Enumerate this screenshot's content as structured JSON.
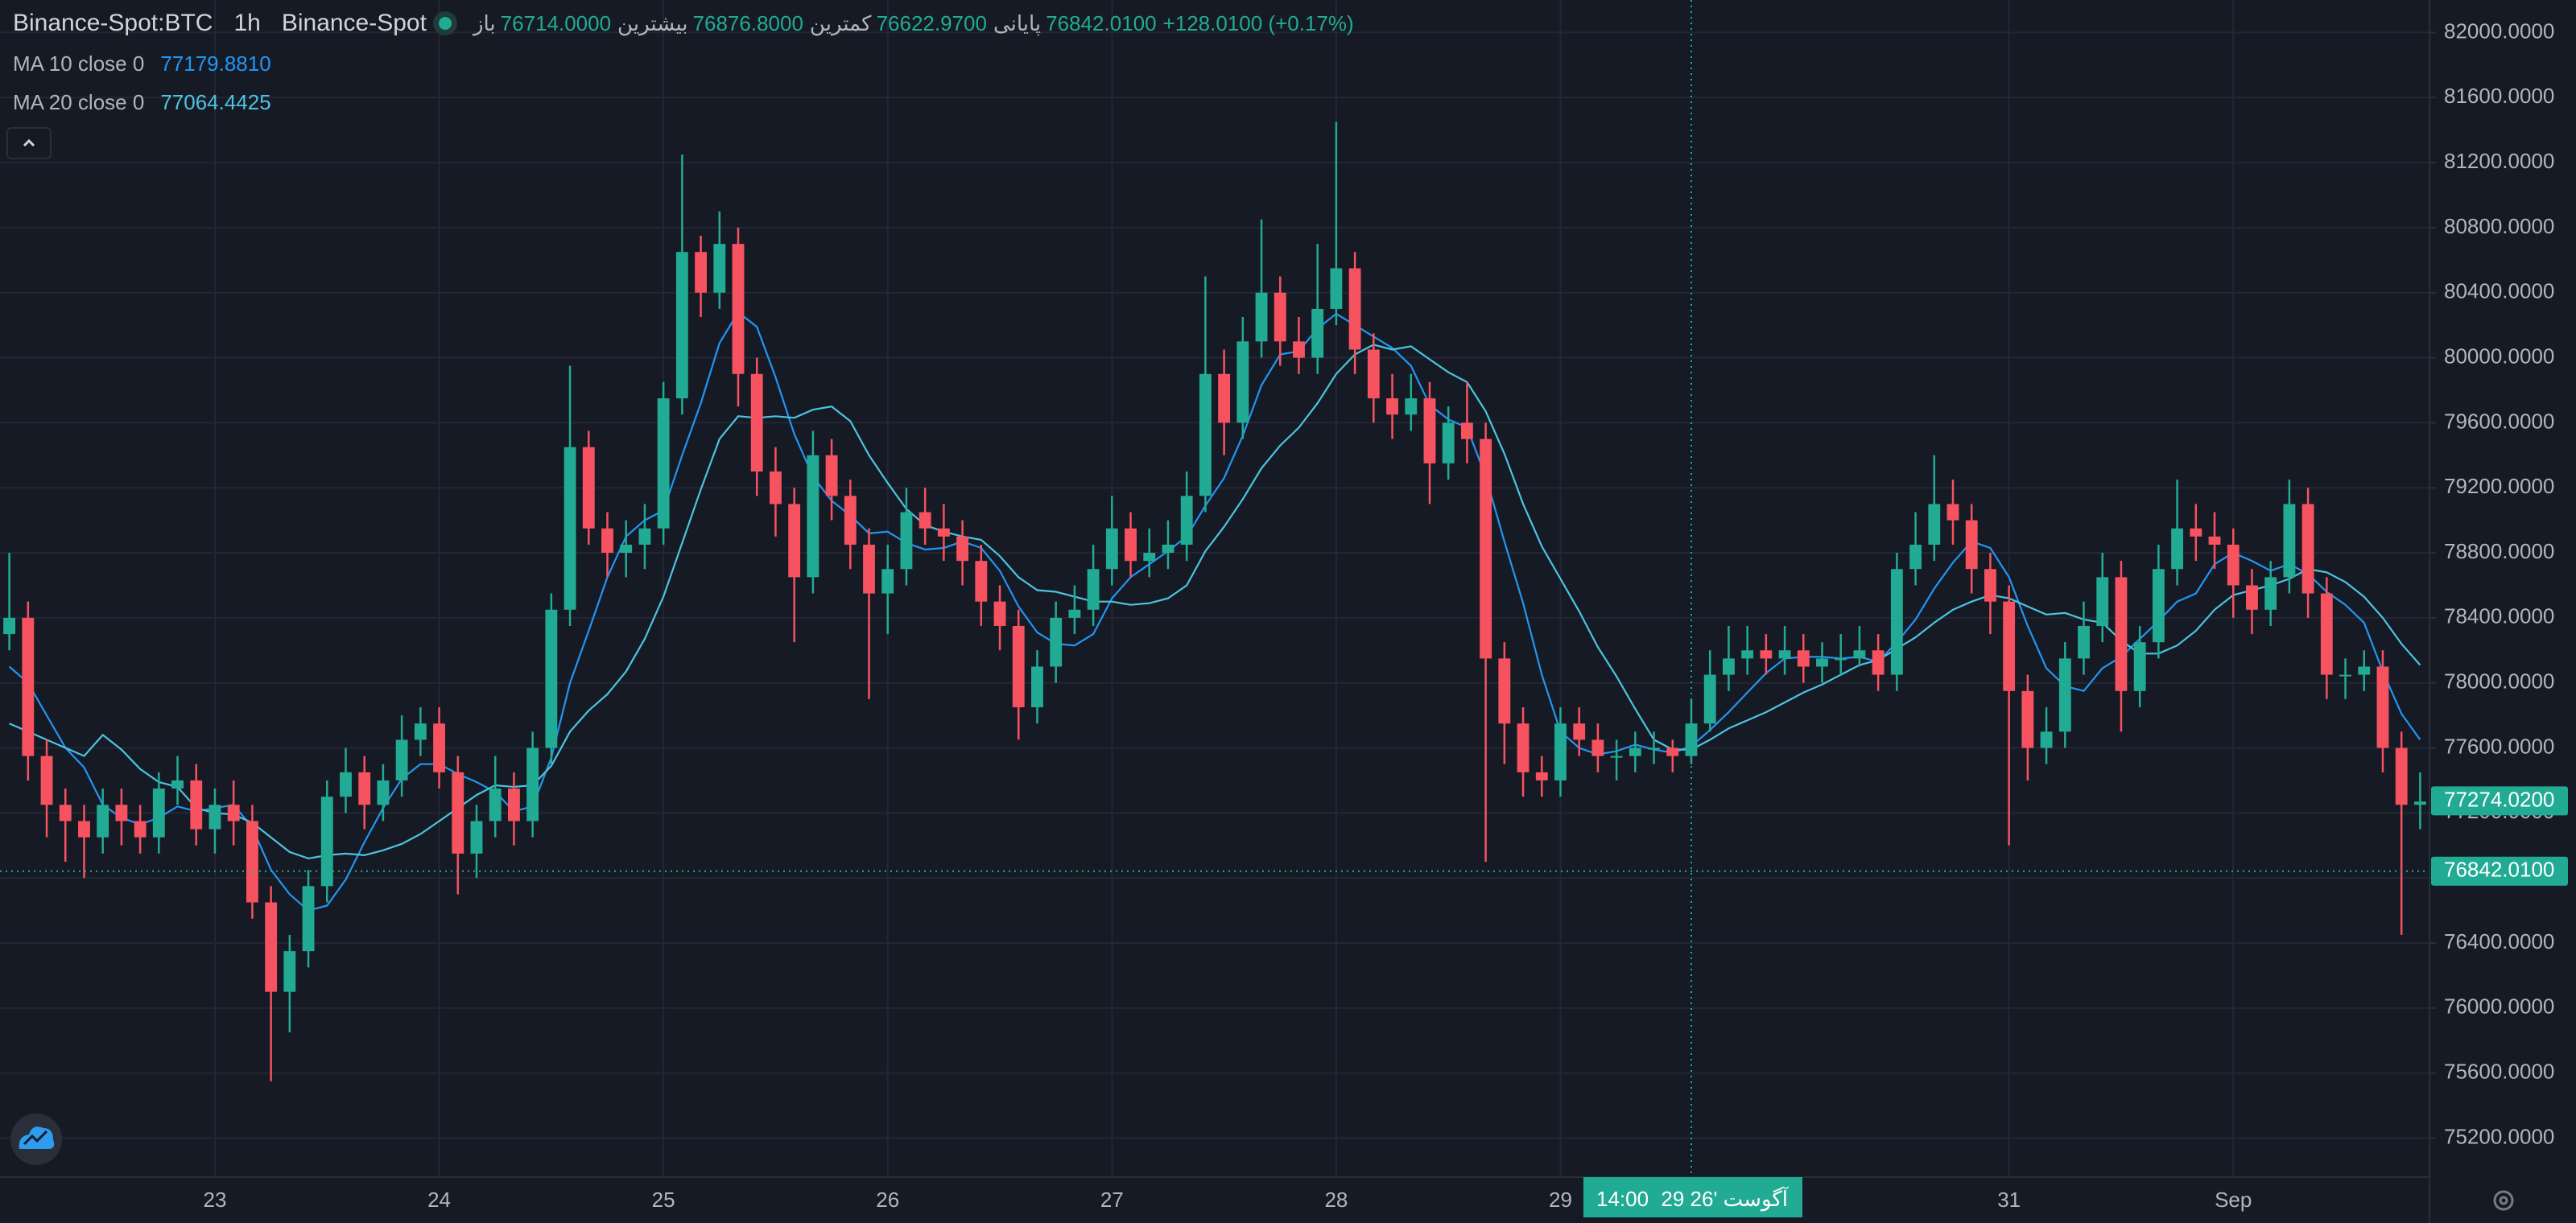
{
  "header": {
    "symbol": "Binance-Spot:BTC",
    "interval": "1h",
    "exchange": "Binance-Spot",
    "ohlc": [
      {
        "label": "باز",
        "value": "76714.0000"
      },
      {
        "label": "بیشترین",
        "value": "76876.8000"
      },
      {
        "label": "کمترین",
        "value": "76622.9700"
      },
      {
        "label": "پایانی",
        "value": "76842.0100"
      }
    ],
    "change": "+128.0100 (+0.17%)"
  },
  "chart_data": {
    "type": "candlestick",
    "up_color": "#22ab94",
    "down_color": "#f7525f",
    "grid": true,
    "categories": [
      null,
      null,
      null,
      null,
      null,
      null,
      null,
      null,
      null,
      null,
      null,
      "23",
      null,
      null,
      null,
      null,
      null,
      null,
      null,
      null,
      null,
      null,
      null,
      "24",
      null,
      null,
      null,
      null,
      null,
      null,
      null,
      null,
      null,
      null,
      null,
      "25",
      null,
      null,
      null,
      null,
      null,
      null,
      null,
      null,
      null,
      null,
      null,
      "26",
      null,
      null,
      null,
      null,
      null,
      null,
      null,
      null,
      null,
      null,
      null,
      "27",
      null,
      null,
      null,
      null,
      null,
      null,
      null,
      null,
      null,
      null,
      null,
      "28",
      null,
      null,
      null,
      null,
      null,
      null,
      null,
      null,
      null,
      null,
      null,
      "29",
      null,
      null,
      null,
      null,
      null,
      null,
      null,
      null,
      null,
      null,
      null,
      null,
      null,
      null,
      null,
      null,
      null,
      null,
      null,
      null,
      null,
      null,
      null,
      "31",
      null,
      null,
      null,
      null,
      null,
      null,
      null,
      null,
      null,
      null,
      null,
      "Sep",
      null,
      null,
      null,
      null,
      null,
      null,
      null,
      null,
      null,
      null
    ],
    "open": [
      78300,
      78400,
      77550,
      77250,
      77150,
      77050,
      77250,
      77150,
      77050,
      77350,
      77400,
      77100,
      77250,
      77150,
      76650,
      76100,
      76350,
      76750,
      77300,
      77450,
      77250,
      77400,
      77650,
      77750,
      77450,
      76950,
      77150,
      77350,
      77150,
      77600,
      78450,
      79450,
      78950,
      78800,
      78850,
      78950,
      79750,
      80650,
      80400,
      80700,
      79900,
      79300,
      79100,
      78650,
      79400,
      79150,
      78850,
      78550,
      78700,
      79050,
      78950,
      78900,
      78750,
      78500,
      78350,
      77850,
      78100,
      78400,
      78450,
      78700,
      78950,
      78750,
      78800,
      78850,
      79150,
      79900,
      79600,
      80100,
      80400,
      80100,
      80000,
      80300,
      80550,
      80050,
      79750,
      79650,
      79750,
      79350,
      79600,
      79500,
      78150,
      77750,
      77450,
      77400,
      77750,
      77650,
      77550,
      77550,
      77600,
      77600,
      77550,
      77750,
      78050,
      78150,
      78200,
      78150,
      78200,
      78100,
      78150,
      78150,
      78200,
      78050,
      78700,
      78850,
      79100,
      79000,
      78700,
      78500,
      77950,
      77600,
      77700,
      78150,
      78350,
      78650,
      77950,
      78250,
      78700,
      78950,
      78900,
      78850,
      78600,
      78450,
      78650,
      79100,
      78550,
      78050,
      78050,
      78100,
      77600,
      77250
    ],
    "high": [
      78800,
      78500,
      77650,
      77350,
      77250,
      77350,
      77350,
      77250,
      77450,
      77550,
      77500,
      77350,
      77400,
      77250,
      76750,
      76450,
      76850,
      77400,
      77600,
      77550,
      77500,
      77800,
      77850,
      77850,
      77550,
      77250,
      77550,
      77450,
      77700,
      78550,
      79950,
      79550,
      79050,
      79000,
      79100,
      79850,
      81250,
      80750,
      80900,
      80800,
      80000,
      79450,
      79200,
      79550,
      79500,
      79250,
      78950,
      78850,
      79200,
      79200,
      79100,
      79000,
      78850,
      78600,
      78450,
      78200,
      78500,
      78600,
      78850,
      79150,
      79050,
      78950,
      79000,
      79300,
      80500,
      80050,
      80250,
      80850,
      80500,
      80250,
      80700,
      81450,
      80650,
      80150,
      79900,
      79900,
      79850,
      79700,
      79850,
      79600,
      78250,
      77850,
      77550,
      77850,
      77850,
      77750,
      77650,
      77700,
      77700,
      77650,
      77900,
      78200,
      78350,
      78350,
      78300,
      78350,
      78300,
      78250,
      78300,
      78350,
      78300,
      78800,
      79050,
      79400,
      79250,
      79100,
      78800,
      78600,
      78050,
      77850,
      78250,
      78500,
      78800,
      78750,
      78350,
      78850,
      79250,
      79100,
      79050,
      78950,
      78700,
      78750,
      79250,
      79200,
      78650,
      78150,
      78200,
      78200,
      77700,
      77450
    ],
    "low": [
      78200,
      77400,
      77050,
      76900,
      76800,
      76950,
      77000,
      76950,
      76950,
      77250,
      77000,
      76950,
      77000,
      76550,
      75550,
      75850,
      76250,
      76650,
      77200,
      77100,
      77150,
      77300,
      77550,
      77350,
      76700,
      76800,
      77050,
      77000,
      77050,
      77500,
      78350,
      78850,
      78650,
      78650,
      78700,
      78850,
      79650,
      80250,
      80300,
      79700,
      79150,
      78900,
      78250,
      78550,
      79000,
      78700,
      77900,
      78300,
      78600,
      78850,
      78750,
      78600,
      78350,
      78200,
      77650,
      77750,
      78000,
      78300,
      78350,
      78600,
      78650,
      78650,
      78700,
      78750,
      79050,
      79400,
      79500,
      80000,
      79950,
      79900,
      79900,
      80200,
      79900,
      79600,
      79500,
      79550,
      79100,
      79250,
      79350,
      76900,
      77500,
      77300,
      77300,
      77300,
      77550,
      77450,
      77400,
      77450,
      77500,
      77450,
      77500,
      77700,
      77950,
      78050,
      78050,
      78050,
      78000,
      78000,
      78050,
      78100,
      77950,
      77950,
      78600,
      78750,
      78850,
      78550,
      78300,
      77000,
      77400,
      77500,
      77600,
      78050,
      78250,
      77700,
      77850,
      78150,
      78600,
      78750,
      78700,
      78400,
      78300,
      78350,
      78550,
      78400,
      77900,
      77900,
      77950,
      77450,
      76450,
      77100
    ],
    "close": [
      78400,
      77550,
      77250,
      77150,
      77050,
      77250,
      77150,
      77050,
      77350,
      77400,
      77100,
      77250,
      77150,
      76650,
      76100,
      76350,
      76750,
      77300,
      77450,
      77250,
      77400,
      77650,
      77750,
      77450,
      76950,
      77150,
      77350,
      77150,
      77600,
      78450,
      79450,
      78950,
      78800,
      78850,
      78950,
      79750,
      80650,
      80400,
      80700,
      79900,
      79300,
      79100,
      78650,
      79400,
      79150,
      78850,
      78550,
      78700,
      79050,
      78950,
      78900,
      78750,
      78500,
      78350,
      77850,
      78100,
      78400,
      78450,
      78700,
      78950,
      78750,
      78800,
      78850,
      79150,
      79900,
      79600,
      80100,
      80400,
      80100,
      80000,
      80300,
      80550,
      80050,
      79750,
      79650,
      79750,
      79350,
      79600,
      79500,
      78150,
      77750,
      77450,
      77400,
      77750,
      77650,
      77550,
      77550,
      77600,
      77600,
      77550,
      77750,
      78050,
      78150,
      78200,
      78150,
      78200,
      78100,
      78150,
      78150,
      78200,
      78050,
      78700,
      78850,
      79100,
      79000,
      78700,
      78500,
      77950,
      77600,
      77700,
      78150,
      78350,
      78650,
      77950,
      78250,
      78700,
      78950,
      78900,
      78850,
      78600,
      78450,
      78650,
      79100,
      78550,
      78050,
      78050,
      78100,
      77600,
      77250,
      77270
    ],
    "series": [
      {
        "name": "MA 10 close 0",
        "color": "#2196f3",
        "legend_value": "77179.8810",
        "values": [
          78100,
          78000,
          77800,
          77600,
          77480,
          77250,
          77170,
          77130,
          77170,
          77240,
          77210,
          77230,
          77250,
          77110,
          76850,
          76700,
          76600,
          76630,
          76790,
          77020,
          77230,
          77410,
          77500,
          77500,
          77440,
          77390,
          77330,
          77210,
          77240,
          77540,
          78000,
          78320,
          78650,
          78900,
          79000,
          79060,
          79400,
          79720,
          80090,
          80280,
          80190,
          79880,
          79530,
          79270,
          79120,
          79030,
          78920,
          78930,
          78860,
          78820,
          78830,
          78870,
          78830,
          78690,
          78470,
          78310,
          78240,
          78230,
          78300,
          78520,
          78650,
          78730,
          78810,
          78900,
          79090,
          79260,
          79520,
          79830,
          80020,
          80040,
          80180,
          80270,
          80200,
          80130,
          80060,
          79950,
          79710,
          79620,
          79570,
          79270,
          78870,
          78490,
          78050,
          77700,
          77600,
          77560,
          77580,
          77620,
          77590,
          77570,
          77610,
          77710,
          77820,
          77940,
          78060,
          78150,
          78160,
          78160,
          78150,
          78160,
          78130,
          78250,
          78390,
          78580,
          78740,
          78870,
          78830,
          78650,
          78350,
          78090,
          77980,
          77950,
          78090,
          78160,
          78270,
          78380,
          78500,
          78550,
          78730,
          78800,
          78750,
          78690,
          78730,
          78670,
          78560,
          78480,
          78370,
          78070,
          77810,
          77650
        ]
      },
      {
        "name": "MA 20 close 0",
        "color": "#4cc4e0",
        "legend_value": "77064.4425",
        "values": [
          77750,
          77700,
          77650,
          77600,
          77550,
          77680,
          77590,
          77470,
          77390,
          77360,
          77230,
          77200,
          77190,
          77140,
          77050,
          76960,
          76920,
          76940,
          76950,
          76940,
          76970,
          77010,
          77070,
          77150,
          77230,
          77310,
          77370,
          77360,
          77370,
          77490,
          77700,
          77830,
          77930,
          78070,
          78270,
          78530,
          78860,
          79190,
          79500,
          79640,
          79630,
          79640,
          79630,
          79680,
          79700,
          79610,
          79400,
          79230,
          79070,
          78970,
          78930,
          78900,
          78880,
          78780,
          78650,
          78570,
          78560,
          78530,
          78500,
          78500,
          78480,
          78490,
          78520,
          78600,
          78810,
          78960,
          79130,
          79320,
          79460,
          79570,
          79720,
          79900,
          80020,
          80080,
          80050,
          80070,
          79990,
          79910,
          79850,
          79670,
          79410,
          79100,
          78840,
          78640,
          78440,
          78220,
          78040,
          77840,
          77650,
          77590,
          77590,
          77650,
          77720,
          77770,
          77820,
          77880,
          77940,
          77990,
          78050,
          78110,
          78140,
          78210,
          78280,
          78370,
          78450,
          78500,
          78540,
          78520,
          78470,
          78420,
          78430,
          78390,
          78370,
          78260,
          78180,
          78180,
          78230,
          78320,
          78450,
          78540,
          78570,
          78600,
          78640,
          78700,
          78680,
          78620,
          78530,
          78400,
          78240,
          78110
        ]
      }
    ],
    "ylim": [
      74960,
      82200
    ],
    "yticks": [
      {
        "value": 75200,
        "label": "75200.0000"
      },
      {
        "value": 75600,
        "label": "75600.0000"
      },
      {
        "value": 76000,
        "label": "76000.0000"
      },
      {
        "value": 76400,
        "label": "76400.0000"
      },
      {
        "value": 76800,
        "label": "76800.0000"
      },
      {
        "value": 77200,
        "label": "77200.0000"
      },
      {
        "value": 77600,
        "label": "77600.0000"
      },
      {
        "value": 78000,
        "label": "78000.0000"
      },
      {
        "value": 78400,
        "label": "78400.0000"
      },
      {
        "value": 78800,
        "label": "78800.0000"
      },
      {
        "value": 79200,
        "label": "79200.0000"
      },
      {
        "value": 79600,
        "label": "79600.0000"
      },
      {
        "value": 80000,
        "label": "80000.0000"
      },
      {
        "value": 80400,
        "label": "80400.0000"
      },
      {
        "value": 80800,
        "label": "80800.0000"
      },
      {
        "value": 81200,
        "label": "81200.0000"
      },
      {
        "value": 81600,
        "label": "81600.0000"
      },
      {
        "value": 82000,
        "label": "82000.0000"
      }
    ],
    "last_price": {
      "value": 76842.01,
      "label": "76842.0100"
    },
    "crosshair": {
      "date": "29 آگوست '26",
      "time": "14:00",
      "y_value": 77274.02,
      "y_label": "77274.0200"
    }
  }
}
